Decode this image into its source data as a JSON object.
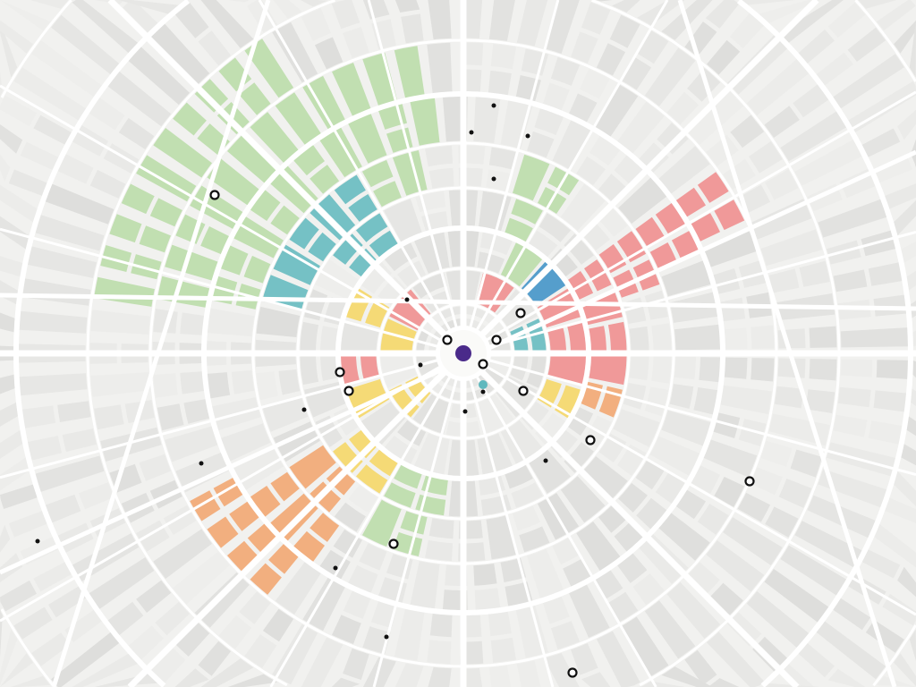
{
  "map": {
    "style": "radial city plan, illustrated",
    "colors": {
      "background": "#f1f1ef",
      "road": "#ffffff",
      "block_gray": "#dfdfdd",
      "green": "#b9dca6",
      "teal": "#5fb8bd",
      "red": "#f08a8a",
      "orange": "#f2a36b",
      "yellow": "#f6d660",
      "blue": "#3a8fc6",
      "center_marker": "#4a2a8a",
      "marker": "#111111"
    },
    "center_marker_icon": "purple-dot",
    "marker_icon": "ring-pin"
  }
}
